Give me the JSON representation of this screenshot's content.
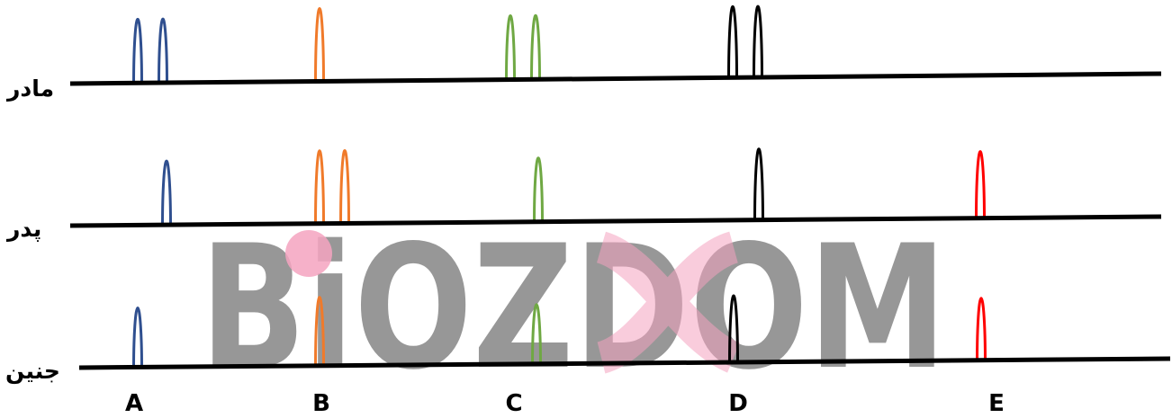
{
  "watermark": {
    "text": "BiOZDOM",
    "gray": "#8c8c8c",
    "pink": "#f4a3bf"
  },
  "colors": {
    "A": "#2f4f8f",
    "B": "#f07a2a",
    "C": "#6fa843",
    "D": "#000000",
    "E": "#ff0000",
    "baseline": "#000000"
  },
  "rows": [
    {
      "label": "مادر",
      "peaks": [
        {
          "locus": "A",
          "n": 2
        },
        {
          "locus": "B",
          "n": 1
        },
        {
          "locus": "C",
          "n": 2
        },
        {
          "locus": "D",
          "n": 2
        }
      ]
    },
    {
      "label": "پدر",
      "peaks": [
        {
          "locus": "A",
          "n": 1
        },
        {
          "locus": "B",
          "n": 2
        },
        {
          "locus": "C",
          "n": 1
        },
        {
          "locus": "D",
          "n": 1
        },
        {
          "locus": "E",
          "n": 1
        }
      ]
    },
    {
      "label": "جنین",
      "peaks": [
        {
          "locus": "A",
          "n": 1
        },
        {
          "locus": "B",
          "n": 1
        },
        {
          "locus": "C",
          "n": 1
        },
        {
          "locus": "D",
          "n": 1
        },
        {
          "locus": "E",
          "n": 1
        }
      ]
    }
  ],
  "columns": [
    "A",
    "B",
    "C",
    "D",
    "E"
  ]
}
